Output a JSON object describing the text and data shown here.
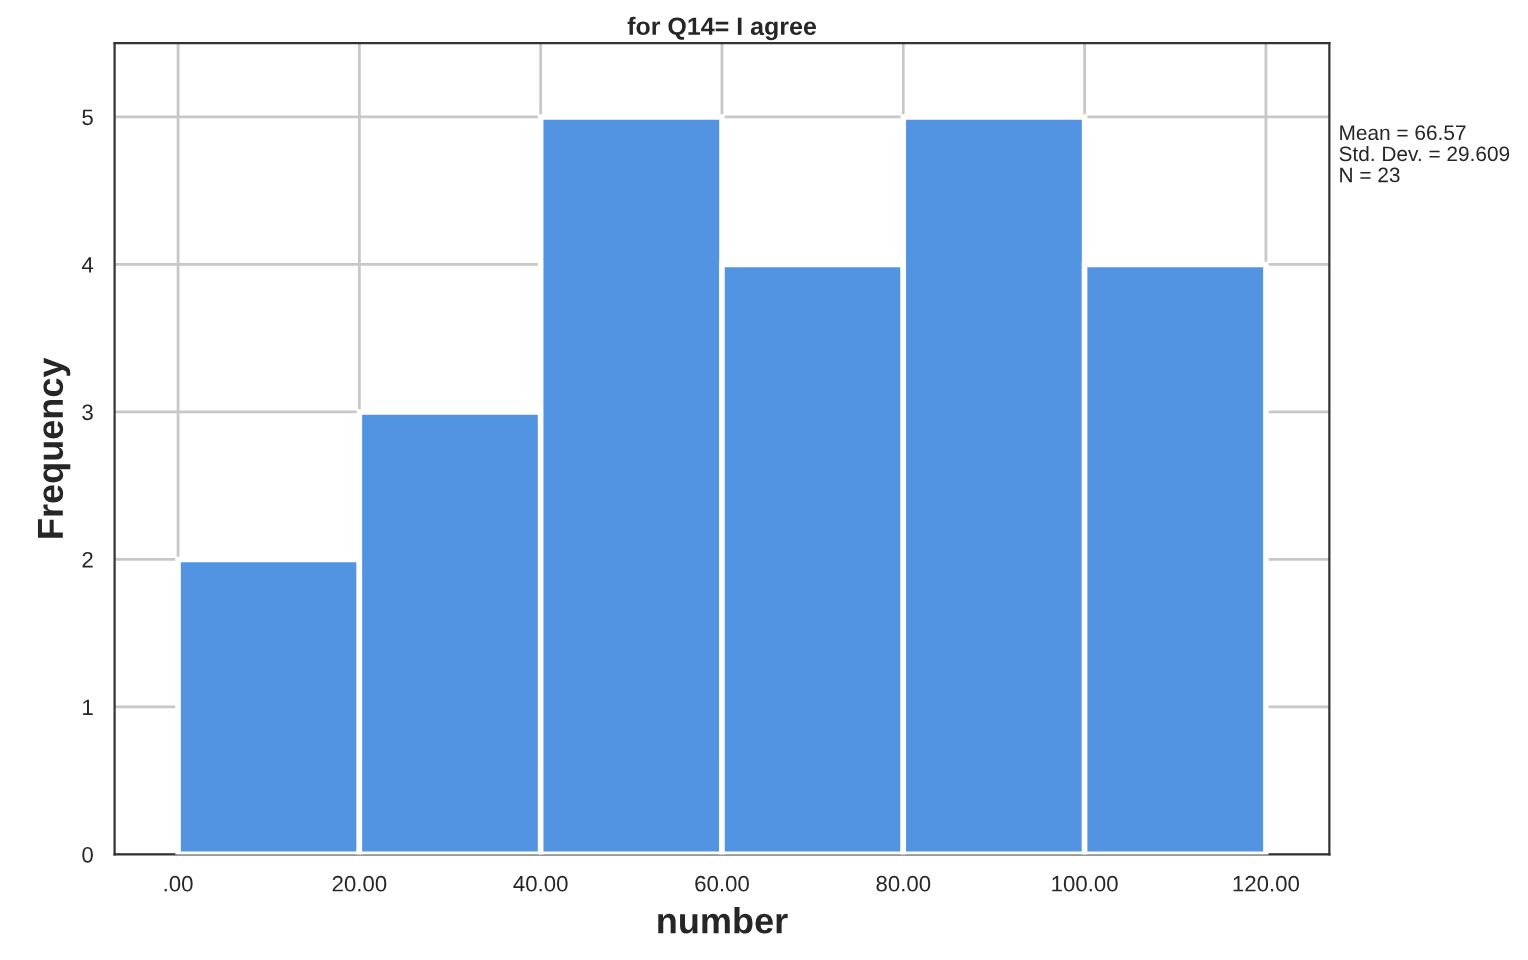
{
  "chart_data": {
    "type": "histogram",
    "title": "for Q14= I agree",
    "xlabel": "number",
    "ylabel": "Frequency",
    "bins": [
      0,
      20,
      40,
      60,
      80,
      100,
      120
    ],
    "values": [
      2,
      3,
      5,
      4,
      5,
      4
    ],
    "color": "#5294e2",
    "xlim": [
      -7,
      127
    ],
    "xticks": [
      {
        "value": 0,
        "label": ".00"
      },
      {
        "value": 20,
        "label": "20.00"
      },
      {
        "value": 40,
        "label": "40.00"
      },
      {
        "value": 60,
        "label": "60.00"
      },
      {
        "value": 80,
        "label": "80.00"
      },
      {
        "value": 100,
        "label": "100.00"
      },
      {
        "value": 120,
        "label": "120.00"
      }
    ],
    "ylim": [
      0,
      5.5
    ],
    "yticks": [
      0,
      1,
      2,
      3,
      4,
      5
    ],
    "grid": true,
    "annotations": [
      "Mean = 66.57",
      "Std. Dev. = 29.609",
      "N = 23"
    ]
  }
}
